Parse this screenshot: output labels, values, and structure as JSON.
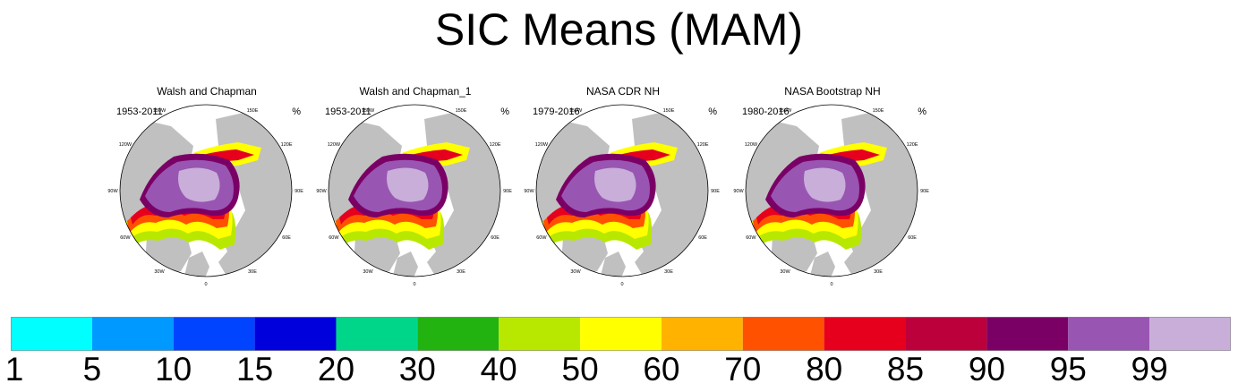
{
  "main_title": "SIC Means (MAM)",
  "chart_data": {
    "type": "heatmap",
    "title": "SIC Means (MAM)",
    "projection": "north polar stereographic",
    "units": "%",
    "panels": [
      {
        "name": "Walsh and Chapman",
        "period": "1953-2011",
        "units": "%"
      },
      {
        "name": "Walsh and Chapman_1",
        "period": "1953-2011",
        "units": "%"
      },
      {
        "name": "NASA CDR NH",
        "period": "1979-2016",
        "units": "%"
      },
      {
        "name": "NASA Bootstrap NH",
        "period": "1980-2016",
        "units": "%"
      }
    ],
    "longitude_labels": [
      "180",
      "150W",
      "150E",
      "120W",
      "120E",
      "90W",
      "90E",
      "60W",
      "60E",
      "30W",
      "30E",
      "0"
    ],
    "colorbar": {
      "levels": [
        "1",
        "5",
        "10",
        "15",
        "20",
        "30",
        "40",
        "50",
        "60",
        "70",
        "80",
        "85",
        "90",
        "95",
        "99"
      ],
      "colors": [
        "#00ffff",
        "#0099ff",
        "#0044ff",
        "#0000dd",
        "#00d68a",
        "#22b311",
        "#b8e800",
        "#ffff00",
        "#ffb300",
        "#ff5100",
        "#e6001e",
        "#bb003b",
        "#7a0066",
        "#9955b2",
        "#c8aed9"
      ]
    },
    "land_color": "#c0c0c0",
    "ocean_color": "#ffffff"
  }
}
